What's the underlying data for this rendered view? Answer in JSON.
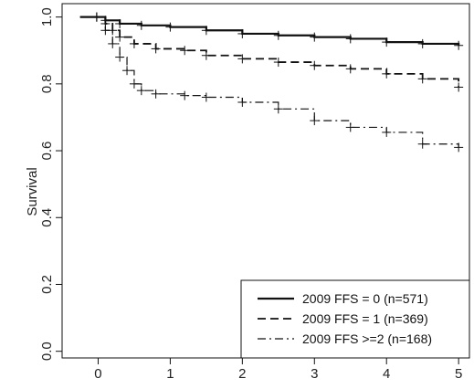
{
  "chart_data": {
    "type": "line",
    "title": "",
    "xlabel": "",
    "ylabel": "Survival",
    "xlim": [
      -0.5,
      5.15
    ],
    "ylim": [
      -0.02,
      1.04
    ],
    "xticks": [
      "0",
      "1",
      "2",
      "3",
      "4",
      "5"
    ],
    "yticks": [
      "0.0",
      "0.2",
      "0.4",
      "0.6",
      "0.8",
      "1.0"
    ],
    "grid": false,
    "legend_position": "bottom-right",
    "series": [
      {
        "name": "2009 FFS = 0  (n=571)",
        "line_style": "solid",
        "x": [
          -0.25,
          -0.02,
          0.1,
          0.3,
          0.6,
          1.0,
          1.5,
          2.0,
          2.5,
          3.0,
          3.5,
          4.0,
          4.5,
          5.0
        ],
        "y": [
          1.0,
          1.0,
          0.99,
          0.98,
          0.975,
          0.97,
          0.96,
          0.95,
          0.945,
          0.94,
          0.935,
          0.925,
          0.92,
          0.915
        ]
      },
      {
        "name": "2009 FFS = 1  (n=369)",
        "line_style": "dashed",
        "x": [
          -0.25,
          -0.02,
          0.1,
          0.2,
          0.3,
          0.5,
          0.8,
          1.2,
          1.5,
          2.0,
          2.5,
          3.0,
          3.5,
          4.0,
          4.5,
          5.0
        ],
        "y": [
          1.0,
          1.0,
          0.98,
          0.96,
          0.94,
          0.92,
          0.905,
          0.9,
          0.885,
          0.875,
          0.865,
          0.855,
          0.845,
          0.83,
          0.815,
          0.79
        ]
      },
      {
        "name": "2009 FFS >=2 (n=168)",
        "line_style": "dotdash",
        "x": [
          -0.25,
          -0.02,
          0.1,
          0.2,
          0.3,
          0.4,
          0.5,
          0.6,
          0.8,
          1.2,
          1.5,
          2.0,
          2.5,
          3.0,
          3.5,
          4.0,
          4.5,
          5.0
        ],
        "y": [
          1.0,
          1.0,
          0.96,
          0.92,
          0.88,
          0.84,
          0.8,
          0.78,
          0.77,
          0.765,
          0.76,
          0.745,
          0.725,
          0.69,
          0.67,
          0.655,
          0.62,
          0.61
        ]
      }
    ]
  }
}
